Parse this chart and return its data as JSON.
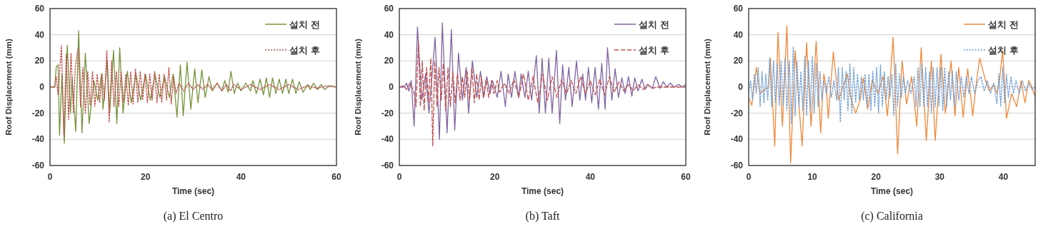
{
  "chart_data": [
    {
      "type": "line",
      "title": "(a)  El Centro",
      "xlabel": "Time (sec)",
      "ylabel": "Roof Displacement (mm)",
      "xlim": [
        0,
        60
      ],
      "xticks": [
        0,
        20,
        40,
        60
      ],
      "ylim": [
        -60,
        60
      ],
      "yticks": [
        -60,
        -40,
        -20,
        0,
        20,
        40,
        60
      ],
      "grid": "y",
      "legend": "top right",
      "series": [
        {
          "name": "설치 전",
          "color": "#77933c",
          "line_style": "solid",
          "x": [
            0,
            1,
            1.3,
            1.7,
            2.0,
            2.5,
            3.0,
            3.6,
            4.3,
            4.6,
            5.4,
            6.0,
            6.7,
            7.4,
            8.2,
            9.2,
            10,
            10.8,
            11.1,
            12,
            12.5,
            13.3,
            14,
            14.6,
            15.3,
            16.2,
            17,
            18,
            19,
            20,
            21,
            22,
            23,
            24,
            25,
            25.8,
            26.6,
            27.3,
            27.9,
            28.7,
            29.5,
            30.3,
            31,
            31.8,
            32.5,
            33.3,
            34,
            35,
            36,
            36.6,
            37.3,
            37.9,
            38.6,
            39.3,
            40,
            41,
            42,
            42.5,
            43.2,
            44,
            44.7,
            45.3,
            46,
            46.6,
            47.3,
            48,
            48.7,
            49.4,
            50,
            50.8,
            51.5,
            52.2,
            53,
            54,
            54.5,
            55.2,
            56,
            56.8,
            57.5,
            58.5,
            60
          ],
          "values": [
            0,
            0,
            15,
            17,
            -37,
            10,
            -43,
            32,
            -20,
            8,
            -34,
            43,
            -35,
            26,
            -28,
            5,
            -10,
            10,
            -17,
            20,
            -20,
            28,
            -28,
            30,
            -20,
            12,
            -12,
            10,
            -10,
            10,
            -10,
            10,
            -8,
            8,
            -8,
            10,
            -23,
            17,
            -22,
            19,
            -17,
            14,
            -12,
            13,
            -8,
            8,
            -3,
            3,
            -3,
            5,
            -4,
            12,
            -5,
            3,
            -3,
            3,
            -3,
            5,
            -5,
            6,
            -6,
            7,
            -8,
            7,
            -5,
            6,
            -5,
            6,
            -5,
            6,
            -5,
            4,
            -4,
            2,
            -2,
            3,
            -2,
            2,
            -2,
            1,
            0
          ]
        },
        {
          "name": "설치 후",
          "color": "#c0504d",
          "line_style": "dotted",
          "x": [
            0,
            1,
            1.3,
            1.7,
            2.0,
            2.4,
            2.9,
            3.4,
            3.9,
            4.4,
            4.9,
            5.3,
            5.9,
            6.4,
            6.9,
            7.4,
            7.9,
            8.4,
            8.9,
            9.4,
            9.9,
            10.4,
            10.9,
            11.4,
            11.9,
            12.4,
            12.9,
            13.4,
            13.9,
            14.4,
            14.9,
            15.4,
            15.9,
            16.4,
            16.9,
            17.4,
            17.9,
            18.4,
            18.9,
            19.4,
            19.9,
            20.4,
            20.9,
            21.4,
            21.9,
            22.4,
            22.9,
            23.4,
            23.9,
            24.4,
            24.9,
            25.4,
            25.9,
            26.4,
            27,
            28,
            29,
            30,
            31,
            32,
            33,
            34,
            35,
            36,
            37,
            37.8,
            38.5,
            40,
            42,
            44,
            46,
            48,
            50,
            52,
            54,
            56,
            58,
            60
          ],
          "values": [
            0,
            0,
            8,
            -6,
            10,
            32,
            -37,
            25,
            -25,
            26,
            -20,
            15,
            30,
            -15,
            15,
            -20,
            12,
            -14,
            12,
            -15,
            10,
            -12,
            10,
            -10,
            28,
            -27,
            20,
            -15,
            12,
            -15,
            12,
            -12,
            10,
            -14,
            12,
            -13,
            14,
            -12,
            12,
            -10,
            10,
            -12,
            10,
            -10,
            12,
            -12,
            10,
            -12,
            10,
            -10,
            15,
            -13,
            8,
            -5,
            3,
            -3,
            3,
            -2,
            2,
            -2,
            2,
            -2,
            3,
            -3,
            2,
            -3,
            2,
            -2,
            2,
            -2,
            2,
            -2,
            2,
            -2,
            1,
            -1,
            1,
            0
          ]
        }
      ]
    },
    {
      "type": "line",
      "title": "(b)  Taft",
      "xlabel": "Time (sec)",
      "ylabel": "Roof Displacement (mm)",
      "xlim": [
        0,
        60
      ],
      "xticks": [
        0,
        20,
        40,
        60
      ],
      "ylim": [
        -60,
        60
      ],
      "yticks": [
        -60,
        -40,
        -20,
        0,
        20,
        40,
        60
      ],
      "grid": "y",
      "legend": "top right",
      "series": [
        {
          "name": "설치 전",
          "color": "#8064a2",
          "line_style": "solid",
          "x": [
            0,
            1,
            1.5,
            2,
            2.5,
            3.1,
            3.8,
            4.7,
            5.5,
            6.2,
            7.5,
            8.4,
            9.0,
            10.0,
            10.9,
            11.6,
            12.4,
            13.2,
            14,
            14.5,
            15.3,
            16.2,
            17,
            17.6,
            18.3,
            19,
            19.5,
            20.5,
            21.3,
            22.2,
            22.8,
            23.5,
            24.2,
            25,
            25.5,
            26.3,
            27,
            27.7,
            28.7,
            29.3,
            29.9,
            30.6,
            31.3,
            32,
            32.9,
            33.6,
            34.2,
            34.8,
            35.5,
            36.2,
            37.1,
            37.8,
            38.4,
            39,
            39.6,
            40.3,
            41,
            41.7,
            42.4,
            43.1,
            43.6,
            44.5,
            45.2,
            45.9,
            46.6,
            47.3,
            48,
            48.7,
            49.3,
            50,
            50.8,
            51.5,
            52,
            53,
            53.7,
            54.6,
            55.3,
            56,
            56.8,
            57.5,
            58.5,
            59.3,
            60
          ],
          "values": [
            0,
            0,
            3,
            -3,
            5,
            -30,
            46,
            -10,
            10,
            -20,
            38,
            -40,
            49,
            -35,
            44,
            -33,
            26,
            -10,
            15,
            -20,
            20,
            -8,
            12,
            -8,
            8,
            -5,
            5,
            -8,
            12,
            -15,
            10,
            -8,
            12,
            -8,
            10,
            -8,
            12,
            -10,
            24,
            -20,
            22,
            -20,
            22,
            -20,
            28,
            -28,
            17,
            -10,
            15,
            -15,
            20,
            -10,
            10,
            -10,
            15,
            -12,
            15,
            -17,
            18,
            -17,
            30,
            -10,
            14,
            -8,
            7,
            -5,
            8,
            -7,
            7,
            -3,
            6,
            -2,
            2,
            -1,
            8,
            -1,
            4,
            0,
            3,
            0,
            2,
            0,
            2
          ]
        },
        {
          "name": "설치 후",
          "color": "#c0504d",
          "line_style": "dashed",
          "x": [
            0,
            1,
            1.5,
            2.2,
            3,
            3.5,
            4.0,
            4.4,
            4.8,
            5.2,
            5.7,
            6.1,
            6.6,
            7.0,
            7.4,
            7.9,
            8.3,
            8.8,
            9.2,
            9.7,
            10.2,
            10.7,
            11.2,
            11.7,
            12.2,
            12.7,
            13.2,
            13.7,
            14.2,
            14.7,
            15.2,
            15.7,
            16.2,
            16.7,
            17.2,
            17.7,
            18.2,
            18.7,
            19.3,
            19.8,
            20.5,
            21,
            22,
            23,
            24,
            25,
            26,
            27,
            28,
            29,
            30,
            31,
            32,
            33,
            34,
            35,
            36,
            37,
            38,
            39,
            40,
            41,
            42,
            43,
            44,
            45,
            46,
            47,
            48,
            49,
            50,
            51,
            52,
            53,
            54,
            60
          ],
          "values": [
            0,
            1,
            -2,
            3,
            -3,
            -15,
            35,
            -15,
            20,
            -18,
            15,
            -12,
            22,
            -45,
            20,
            -15,
            15,
            -10,
            18,
            -18,
            15,
            -15,
            12,
            -12,
            10,
            -10,
            8,
            -8,
            12,
            -10,
            15,
            -12,
            10,
            -10,
            8,
            -8,
            6,
            -8,
            5,
            -5,
            5,
            -4,
            3,
            -5,
            6,
            -8,
            10,
            -10,
            8,
            -12,
            10,
            -10,
            8,
            -8,
            6,
            -5,
            5,
            -5,
            8,
            -5,
            5,
            -6,
            6,
            -6,
            8,
            -4,
            4,
            -3,
            2,
            -3,
            2,
            -2,
            2,
            -1,
            0,
            0
          ]
        }
      ]
    },
    {
      "type": "line",
      "title": "(c)  California",
      "xlabel": "Time (sec)",
      "ylabel": "Roof Displacement (mm)",
      "xlim": [
        0,
        45
      ],
      "xticks": [
        0,
        10,
        20,
        30,
        40
      ],
      "ylim": [
        -60,
        60
      ],
      "yticks": [
        -60,
        -40,
        -20,
        0,
        20,
        40,
        60
      ],
      "grid": "y",
      "legend": "top right",
      "series": [
        {
          "name": "설치 전",
          "color": "#f0883a",
          "line_style": "solid",
          "x": [
            0,
            0.5,
            1.2,
            1.8,
            2.5,
            3.1,
            3.4,
            4.1,
            4.6,
            5.3,
            6.0,
            6.6,
            7.3,
            8.0,
            8.4,
            9.1,
            9.8,
            10.6,
            11.3,
            11.8,
            12.2,
            12.5,
            13.3,
            14.1,
            14.8,
            15.5,
            16,
            16.8,
            17.5,
            18,
            18.7,
            19.4,
            20.3,
            21.1,
            21.8,
            22.7,
            23.4,
            24.1,
            24.8,
            25.6,
            26.4,
            27.1,
            27.9,
            28.7,
            29.3,
            30.2,
            30.9,
            31.8,
            32.4,
            33.0,
            33.7,
            34.4,
            35.2,
            35.8,
            36.3,
            37.2,
            37.8,
            38.5,
            39,
            39.4,
            39.9,
            40.5,
            41.3,
            42.1,
            42.8,
            43.4,
            44,
            44.5,
            45
          ],
          "values": [
            -8,
            -14,
            15,
            -5,
            -2,
            0,
            22,
            -45,
            42,
            -30,
            47,
            -58,
            28,
            -20,
            -45,
            34,
            -30,
            35,
            -35,
            10,
            0,
            -24,
            27,
            -10,
            0,
            10,
            -8,
            -20,
            -10,
            7,
            -17,
            5,
            -5,
            8,
            -22,
            38,
            -51,
            20,
            -13,
            8,
            -30,
            30,
            -41,
            20,
            -41,
            25,
            -20,
            20,
            -22,
            15,
            -23,
            14,
            -22,
            5,
            22,
            5,
            -3,
            2,
            -5,
            5,
            28,
            -24,
            -5,
            -15,
            5,
            -12,
            5,
            0,
            -8
          ]
        },
        {
          "name": "설치 후",
          "color": "#6f9fd8",
          "line_style": "dotted",
          "x": [
            0,
            0.3,
            0.6,
            0.9,
            1.2,
            1.5,
            1.8,
            2.1,
            2.4,
            2.7,
            3.0,
            3.3,
            3.6,
            3.9,
            4.2,
            4.5,
            4.8,
            5.1,
            5.4,
            5.7,
            6.0,
            6.4,
            6.7,
            7.0,
            7.3,
            7.6,
            7.9,
            8.2,
            8.5,
            8.8,
            9.1,
            9.4,
            9.7,
            10.0,
            10.3,
            10.6,
            10.9,
            11.2,
            11.5,
            11.8,
            12.2,
            12.6,
            13,
            13.4,
            13.8,
            14.1,
            14.4,
            14.7,
            15.0,
            15.3,
            15.6,
            15.9,
            16.2,
            16.5,
            16.8,
            17.1,
            17.4,
            17.7,
            18,
            18.3,
            18.6,
            18.9,
            19.2,
            19.5,
            19.8,
            20.1,
            20.4,
            20.7,
            21,
            21.3,
            21.6,
            21.9,
            22.2,
            22.5,
            22.8,
            23.1,
            23.4,
            23.7,
            24,
            24.3,
            24.6,
            25,
            25.5,
            26,
            26.3,
            26.6,
            26.9,
            27.2,
            27.5,
            27.8,
            28.1,
            28.4,
            28.7,
            29,
            29.3,
            29.6,
            29.9,
            30.2,
            30.5,
            30.8,
            31.1,
            31.4,
            31.7,
            32,
            32.3,
            32.6,
            33,
            33.4,
            33.8,
            34.2,
            34.6,
            35,
            35.5,
            36,
            36.5,
            37,
            37.5,
            38,
            38.5,
            39,
            39.3,
            39.6,
            39.9,
            40.2,
            40.5,
            40.8,
            41.2,
            41.6,
            42,
            42.5,
            43,
            43.5,
            44,
            44.5,
            45
          ],
          "values": [
            -5,
            5,
            -10,
            10,
            -5,
            15,
            -15,
            12,
            -12,
            10,
            -10,
            22,
            -15,
            20,
            -12,
            18,
            -14,
            20,
            -14,
            22,
            -18,
            20,
            -28,
            31,
            -22,
            20,
            -15,
            12,
            -18,
            24,
            -22,
            20,
            -18,
            24,
            -20,
            18,
            -15,
            12,
            -10,
            5,
            -5,
            8,
            -8,
            5,
            -10,
            15,
            -27,
            15,
            -10,
            12,
            -18,
            18,
            -20,
            15,
            -12,
            10,
            -10,
            8,
            -10,
            10,
            -15,
            10,
            -18,
            12,
            -15,
            15,
            -20,
            17,
            -15,
            12,
            -10,
            8,
            -8,
            10,
            -22,
            18,
            -15,
            10,
            -8,
            8,
            -5,
            5,
            -5,
            8,
            -15,
            15,
            -15,
            18,
            -15,
            15,
            -15,
            12,
            -20,
            15,
            -15,
            15,
            -15,
            15,
            -18,
            15,
            -15,
            12,
            -10,
            12,
            -15,
            12,
            -10,
            8,
            -8,
            8,
            -5,
            8,
            -5,
            5,
            8,
            -3,
            5,
            -5,
            3,
            -13,
            10,
            -15,
            15,
            -12,
            10,
            -8,
            8,
            -5,
            5,
            -5,
            5,
            -3,
            3,
            -2,
            0
          ]
        }
      ]
    }
  ]
}
